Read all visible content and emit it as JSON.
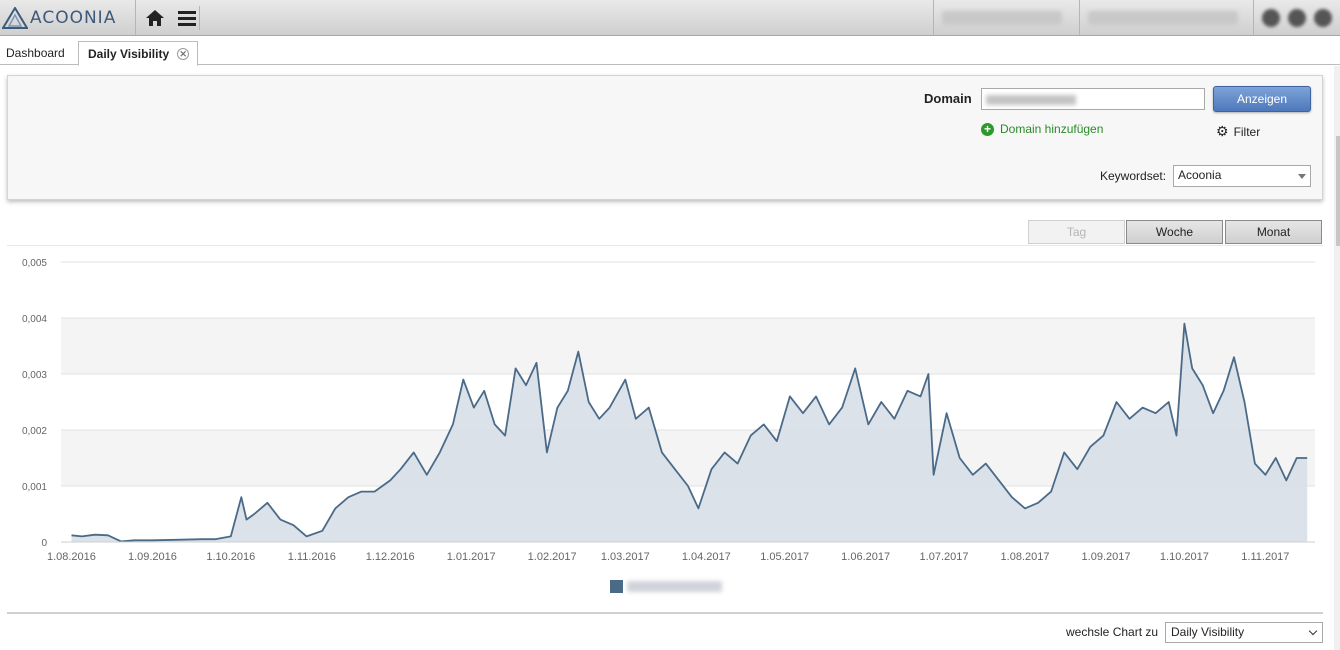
{
  "app": {
    "logo_text": "ACOONIA"
  },
  "topbar": {
    "icons": [
      "home-icon",
      "hamburger-menu-icon"
    ],
    "right_icons": [
      "globe-icon",
      "user-icon",
      "messages-icon"
    ]
  },
  "tabs": [
    {
      "label": "Dashboard",
      "active": false
    },
    {
      "label": "Daily Visibility",
      "active": true
    }
  ],
  "form": {
    "domain_label": "Domain",
    "domain_value": "",
    "show_button": "Anzeigen",
    "add_domain_link": "Domain hinzufügen",
    "filter_link": "Filter",
    "keywordset_label": "Keywordset:",
    "keywordset_value": "Acoonia"
  },
  "period_buttons": [
    {
      "label": "Tag",
      "disabled": true
    },
    {
      "label": "Woche",
      "disabled": false
    },
    {
      "label": "Monat",
      "disabled": false
    }
  ],
  "chart_switch": {
    "label": "wechsle Chart zu",
    "value": "Daily Visibility"
  },
  "colors": {
    "line": "#4a6a88",
    "area": "#d6dde6",
    "primary_button": "#5580c2",
    "add_link": "#2a8a2a"
  },
  "chart_data": {
    "type": "area",
    "title": "",
    "xlabel": "",
    "ylabel": "",
    "ylim": [
      0,
      0.005
    ],
    "y_ticks": [
      "0",
      "0,001",
      "0,002",
      "0,003",
      "0,004",
      "0,005"
    ],
    "x_ticks": [
      "1.08.2016",
      "1.09.2016",
      "1.10.2016",
      "1.11.2016",
      "1.12.2016",
      "1.01.2017",
      "1.02.2017",
      "1.03.2017",
      "1.04.2017",
      "1.05.2017",
      "1.06.2017",
      "1.07.2017",
      "1.08.2017",
      "1.09.2017",
      "1.10.2017",
      "1.11.2017"
    ],
    "grid": true,
    "legend_placement": "bottom-center",
    "series": [
      {
        "name": "",
        "x": [
          "2016-08-01",
          "2016-08-05",
          "2016-08-10",
          "2016-08-15",
          "2016-08-20",
          "2016-08-25",
          "2016-09-01",
          "2016-09-10",
          "2016-09-20",
          "2016-09-25",
          "2016-10-01",
          "2016-10-05",
          "2016-10-07",
          "2016-10-10",
          "2016-10-15",
          "2016-10-20",
          "2016-10-25",
          "2016-10-30",
          "2016-11-05",
          "2016-11-10",
          "2016-11-15",
          "2016-11-20",
          "2016-11-25",
          "2016-12-01",
          "2016-12-05",
          "2016-12-10",
          "2016-12-15",
          "2016-12-20",
          "2016-12-25",
          "2016-12-29",
          "2017-01-02",
          "2017-01-06",
          "2017-01-10",
          "2017-01-14",
          "2017-01-18",
          "2017-01-22",
          "2017-01-26",
          "2017-01-30",
          "2017-02-03",
          "2017-02-07",
          "2017-02-11",
          "2017-02-15",
          "2017-02-19",
          "2017-02-23",
          "2017-03-01",
          "2017-03-05",
          "2017-03-10",
          "2017-03-15",
          "2017-03-20",
          "2017-03-25",
          "2017-03-29",
          "2017-04-03",
          "2017-04-08",
          "2017-04-13",
          "2017-04-18",
          "2017-04-23",
          "2017-04-28",
          "2017-05-03",
          "2017-05-08",
          "2017-05-13",
          "2017-05-18",
          "2017-05-23",
          "2017-05-28",
          "2017-06-02",
          "2017-06-07",
          "2017-06-12",
          "2017-06-17",
          "2017-06-22",
          "2017-06-25",
          "2017-06-27",
          "2017-07-02",
          "2017-07-07",
          "2017-07-12",
          "2017-07-17",
          "2017-07-22",
          "2017-07-27",
          "2017-08-01",
          "2017-08-06",
          "2017-08-11",
          "2017-08-16",
          "2017-08-21",
          "2017-08-26",
          "2017-08-31",
          "2017-09-05",
          "2017-09-10",
          "2017-09-15",
          "2017-09-20",
          "2017-09-25",
          "2017-09-28",
          "2017-10-01",
          "2017-10-04",
          "2017-10-08",
          "2017-10-12",
          "2017-10-16",
          "2017-10-20",
          "2017-10-24",
          "2017-10-28",
          "2017-11-01",
          "2017-11-05",
          "2017-11-09",
          "2017-11-13",
          "2017-11-17"
        ],
        "values": [
          0.00012,
          0.0001,
          0.00013,
          0.00012,
          1e-05,
          3e-05,
          3e-05,
          4e-05,
          5e-05,
          5e-05,
          0.0001,
          0.0008,
          0.0004,
          0.0005,
          0.0007,
          0.0004,
          0.0003,
          0.0001,
          0.0002,
          0.0006,
          0.0008,
          0.0009,
          0.0009,
          0.0011,
          0.0013,
          0.0016,
          0.0012,
          0.0016,
          0.0021,
          0.0029,
          0.0024,
          0.0027,
          0.0021,
          0.0019,
          0.0031,
          0.0028,
          0.0032,
          0.0016,
          0.0024,
          0.0027,
          0.0034,
          0.0025,
          0.0022,
          0.0024,
          0.0029,
          0.0022,
          0.0024,
          0.0016,
          0.0013,
          0.001,
          0.0006,
          0.0013,
          0.0016,
          0.0014,
          0.0019,
          0.0021,
          0.0018,
          0.0026,
          0.0023,
          0.0026,
          0.0021,
          0.0024,
          0.0031,
          0.0021,
          0.0025,
          0.0022,
          0.0027,
          0.0026,
          0.003,
          0.0012,
          0.0023,
          0.0015,
          0.0012,
          0.0014,
          0.0011,
          0.0008,
          0.0006,
          0.0007,
          0.0009,
          0.0016,
          0.0013,
          0.0017,
          0.0019,
          0.0025,
          0.0022,
          0.0024,
          0.0023,
          0.0025,
          0.0019,
          0.0039,
          0.0031,
          0.0028,
          0.0023,
          0.0027,
          0.0033,
          0.0025,
          0.0014,
          0.0012,
          0.0015,
          0.0011,
          0.0015,
          0.0015
        ]
      }
    ]
  }
}
